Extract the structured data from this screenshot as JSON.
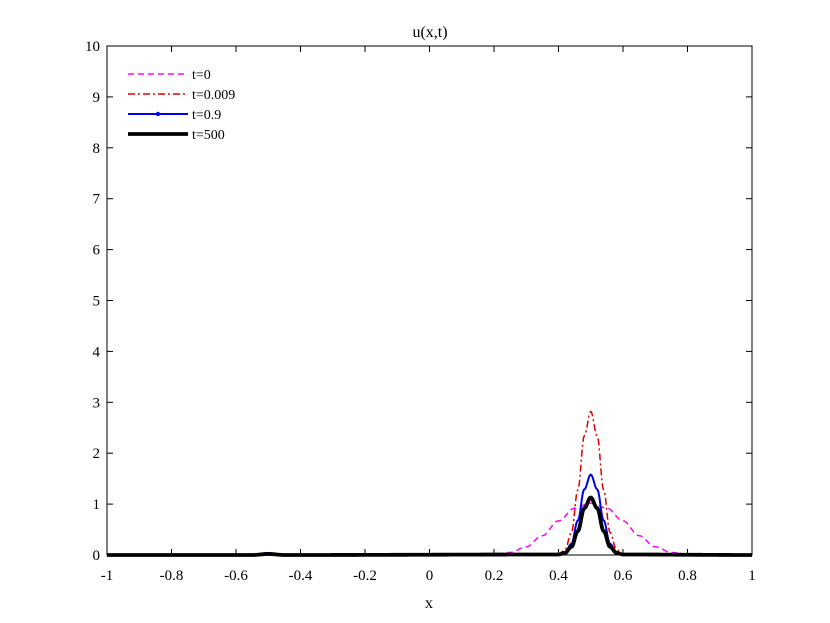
{
  "chart_data": {
    "type": "line",
    "title": "u(x,t)",
    "xlabel": "x",
    "ylabel": "",
    "xlim": [
      -1,
      1
    ],
    "ylim": [
      0,
      10
    ],
    "xticks": [
      -1,
      -0.8,
      -0.6,
      -0.4,
      -0.2,
      0,
      0.2,
      0.4,
      0.6,
      0.8,
      1
    ],
    "xtick_labels": [
      "-1",
      "-0.8",
      "-0.6",
      "-0.4",
      "-0.2",
      "0",
      "0.2",
      "0.4",
      "0.6",
      "0.8",
      "1"
    ],
    "yticks": [
      0,
      1,
      2,
      3,
      4,
      5,
      6,
      7,
      8,
      9,
      10
    ],
    "ytick_labels": [
      "0",
      "1",
      "2",
      "3",
      "4",
      "5",
      "6",
      "7",
      "8",
      "9",
      "10"
    ],
    "grid": false,
    "legend_position": "top-left",
    "series": [
      {
        "name": "t=0",
        "color": "#ff00ff",
        "style": "dashed",
        "x": [
          -1,
          0.15,
          0.2,
          0.25,
          0.3,
          0.35,
          0.4,
          0.45,
          0.5,
          0.55,
          0.6,
          0.65,
          0.7,
          0.75,
          0.8,
          0.85,
          1
        ],
        "y": [
          0,
          0,
          0.01,
          0.05,
          0.16,
          0.38,
          0.67,
          0.92,
          1.02,
          0.92,
          0.67,
          0.38,
          0.16,
          0.05,
          0.01,
          0,
          0
        ]
      },
      {
        "name": "t=0.009",
        "color": "#e00000",
        "style": "dashdot",
        "x": [
          -1,
          0.4,
          0.42,
          0.44,
          0.46,
          0.48,
          0.5,
          0.52,
          0.54,
          0.56,
          0.58,
          0.6,
          1
        ],
        "y": [
          0,
          0.02,
          0.1,
          0.44,
          1.28,
          2.34,
          2.82,
          2.34,
          1.28,
          0.44,
          0.1,
          0.02,
          0
        ]
      },
      {
        "name": "t=0.9",
        "color": "#0000ee",
        "style": "solid-dots",
        "x": [
          -1,
          -0.55,
          -0.5,
          -0.45,
          0.4,
          0.42,
          0.44,
          0.46,
          0.48,
          0.5,
          0.52,
          0.54,
          0.56,
          0.58,
          0.6,
          1
        ],
        "y": [
          0,
          0,
          0.04,
          0,
          0.01,
          0.05,
          0.22,
          0.68,
          1.29,
          1.58,
          1.29,
          0.68,
          0.22,
          0.05,
          0.01,
          0
        ]
      },
      {
        "name": "t=500",
        "color": "#000000",
        "style": "solid-thick",
        "x": [
          -1,
          -0.55,
          -0.5,
          -0.45,
          0.4,
          0.42,
          0.44,
          0.46,
          0.48,
          0.5,
          0.52,
          0.54,
          0.56,
          0.58,
          0.6,
          1
        ],
        "y": [
          0,
          0,
          0.02,
          0,
          0.01,
          0.04,
          0.16,
          0.47,
          0.92,
          1.13,
          0.92,
          0.47,
          0.16,
          0.04,
          0.01,
          0
        ]
      }
    ]
  }
}
